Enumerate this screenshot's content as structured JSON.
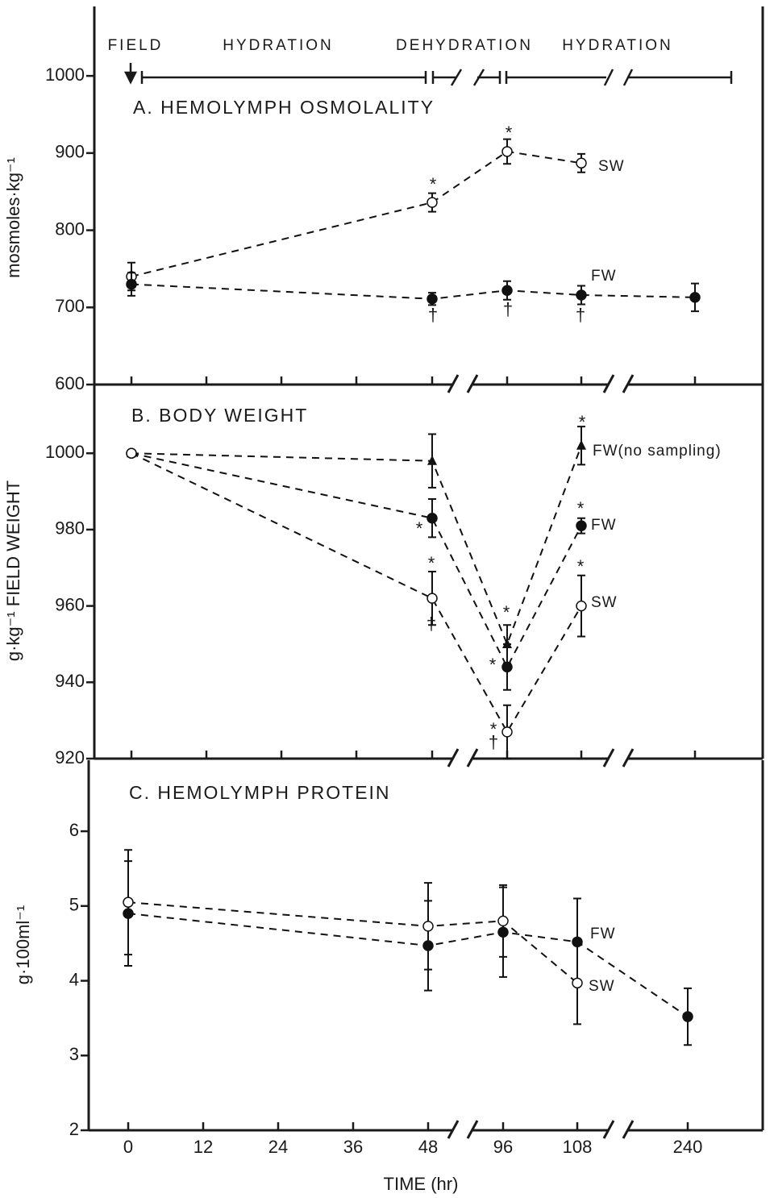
{
  "chart_data": [
    {
      "type": "line",
      "title": "A.  HEMOLYMPH OSMOLALITY",
      "ylabel": "mosmoles·kg⁻¹",
      "phases": [
        "FIELD",
        "HYDRATION",
        "DEHYDRATION",
        "HYDRATION"
      ],
      "annotations": [
        "*",
        "*",
        "†",
        "†",
        "†"
      ],
      "ylim": [
        600,
        1090
      ],
      "yticks": [
        600,
        700,
        800,
        900,
        1000
      ],
      "series": [
        {
          "name": "SW",
          "color": "#111111",
          "marker": "open",
          "x": [
            0,
            48,
            96,
            108
          ],
          "values": [
            740,
            836,
            902,
            887
          ],
          "errors": [
            18,
            12,
            16,
            12
          ]
        },
        {
          "name": "FW",
          "color": "#111111",
          "marker": "filled",
          "x": [
            0,
            48,
            96,
            108,
            240
          ],
          "values": [
            730,
            711,
            722,
            716,
            713
          ],
          "errors": [
            15,
            8,
            12,
            12,
            18
          ]
        }
      ]
    },
    {
      "type": "line",
      "title": "B.  BODY WEIGHT",
      "ylabel": "g·kg⁻¹ FIELD WEIGHT",
      "annotations": [
        "*",
        "*",
        "†",
        "*",
        "*",
        "*",
        "*",
        "*",
        "*",
        "†"
      ],
      "ylim": [
        920,
        1018
      ],
      "yticks": [
        920,
        940,
        960,
        980,
        1000
      ],
      "series": [
        {
          "name": "FW(no sampling)",
          "color": "#111111",
          "marker": "triangle",
          "x": [
            0,
            48,
            96,
            108
          ],
          "values": [
            1000,
            998,
            950,
            1002
          ],
          "errors": [
            null,
            7,
            5,
            5
          ]
        },
        {
          "name": "FW",
          "color": "#111111",
          "marker": "filled",
          "x": [
            0,
            48,
            96,
            108
          ],
          "values": [
            1000,
            983,
            944,
            981
          ],
          "errors": [
            null,
            5,
            6,
            2
          ]
        },
        {
          "name": "SW",
          "color": "#111111",
          "marker": "open",
          "x": [
            0,
            48,
            96,
            108
          ],
          "values": [
            1000,
            962,
            927,
            960
          ],
          "errors": [
            null,
            7,
            7,
            8
          ]
        }
      ]
    },
    {
      "type": "line",
      "title": "C.  HEMOLYMPH PROTEIN",
      "ylabel": "g·100ml⁻¹",
      "xlabel": "TIME (hr)",
      "ylim": [
        2,
        6.95
      ],
      "yticks": [
        2,
        3,
        4,
        5,
        6
      ],
      "xticks": [
        0,
        12,
        24,
        36,
        48,
        96,
        108,
        240
      ],
      "series": [
        {
          "name": "FW",
          "color": "#111111",
          "marker": "filled",
          "x": [
            0,
            48,
            96,
            108,
            240
          ],
          "values": [
            4.9,
            4.47,
            4.65,
            4.52,
            3.52
          ],
          "errors": [
            0.7,
            0.6,
            0.6,
            0.58,
            0.38
          ]
        },
        {
          "name": "SW",
          "color": "#111111",
          "marker": "open",
          "x": [
            0,
            48,
            96,
            108
          ],
          "values": [
            5.05,
            4.73,
            4.8,
            3.97
          ],
          "errors": [
            0.7,
            0.58,
            0.48,
            0.55
          ]
        }
      ]
    }
  ]
}
